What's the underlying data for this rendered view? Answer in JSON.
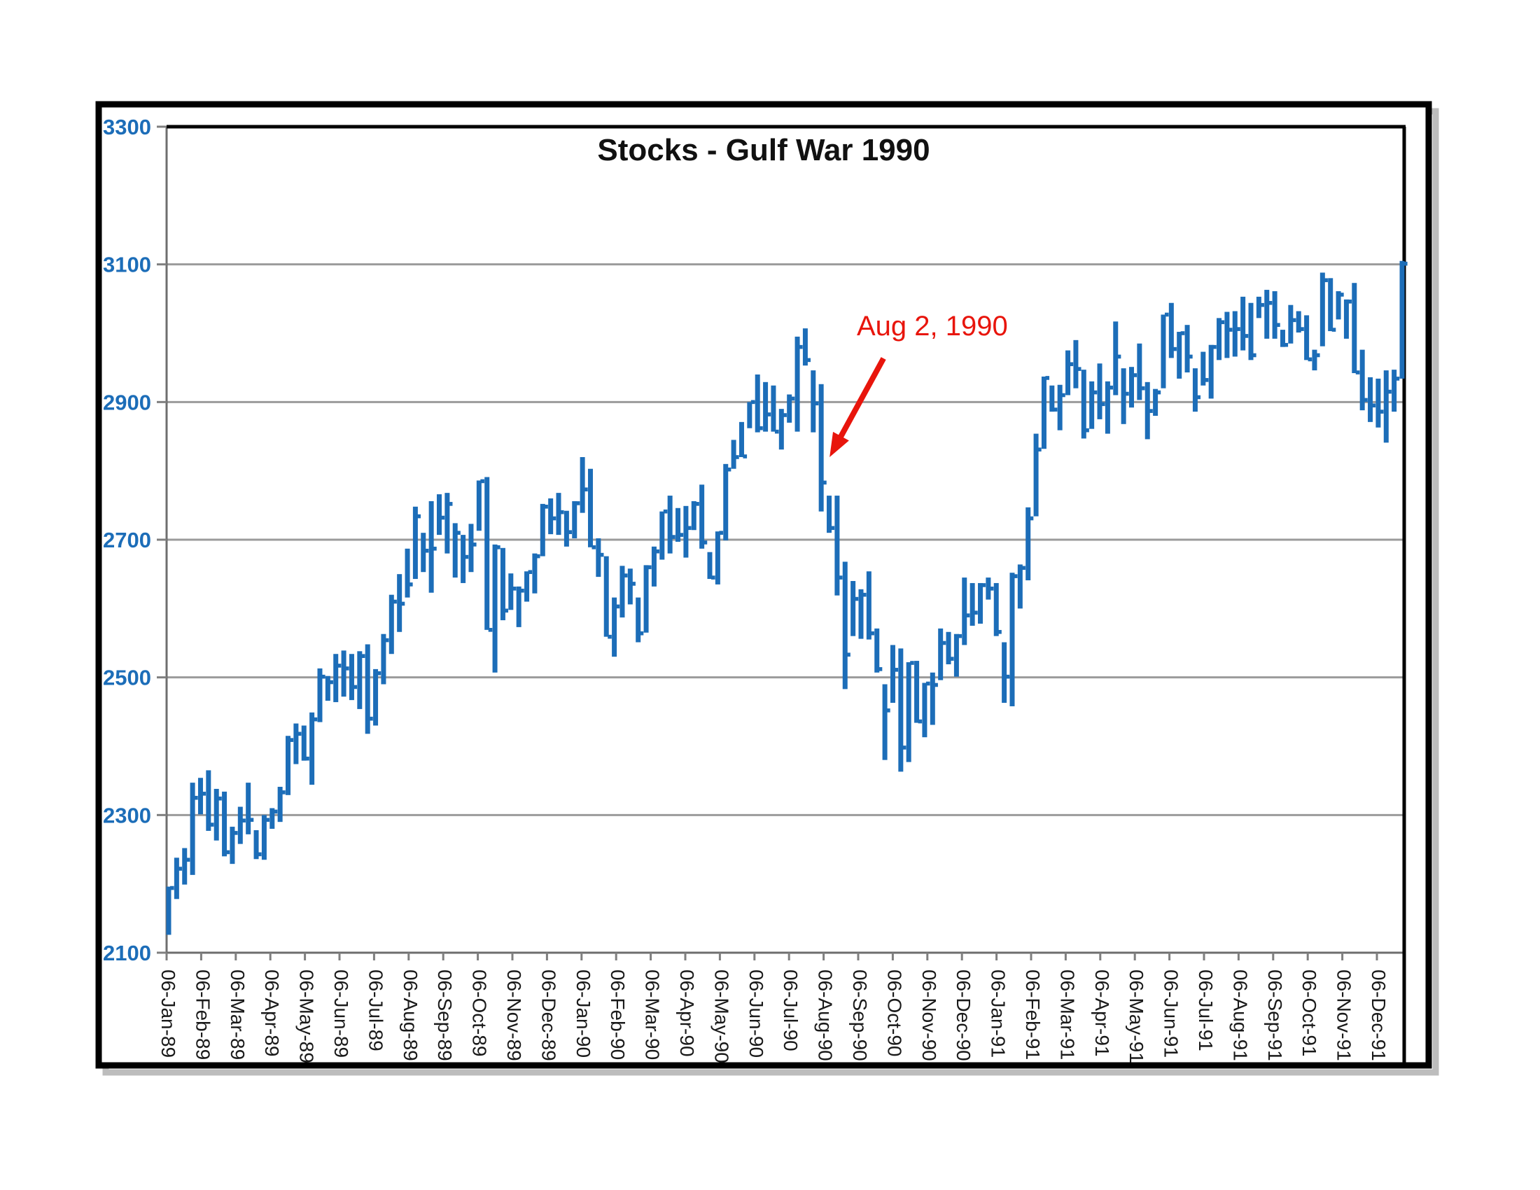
{
  "chart": {
    "title": "Stocks - Gulf War 1990",
    "annotation": {
      "text": "Aug 2, 1990",
      "target_bar_index": 82,
      "target_value": 2820
    },
    "colors": {
      "bar_blue": "#1c6db8",
      "y_label_blue": "#1c6db8",
      "grid_gray": "#9b9b9b",
      "axis_gray": "#6e6e6e",
      "tick_gray": "#7f7f7f",
      "frame_black": "#000000",
      "shadow_gray": "#bdbdbd",
      "x_label_black": "#1a1a1a",
      "annotation_red": "#e8150c",
      "background": "#ffffff"
    }
  },
  "chart_data": {
    "type": "bar",
    "subtype": "high-low-close weekly stock bars",
    "title": "Stocks - Gulf War 1990",
    "annotation": "Aug 2, 1990",
    "xlabel": "",
    "ylabel": "",
    "ylim": [
      2100,
      3300
    ],
    "y_ticks": [
      3300,
      3100,
      2900,
      2700,
      2500,
      2300,
      2100
    ],
    "grid": "horizontal gridlines on",
    "legend": "none",
    "x_tick_labels": [
      "06-Jan-89",
      "06-Feb-89",
      "06-Mar-89",
      "06-Apr-89",
      "06-May-89",
      "06-Jun-89",
      "06-Jul-89",
      "06-Aug-89",
      "06-Sep-89",
      "06-Oct-89",
      "06-Nov-89",
      "06-Dec-89",
      "06-Jan-90",
      "06-Feb-90",
      "06-Mar-90",
      "06-Apr-90",
      "06-May-90",
      "06-Jun-90",
      "06-Jul-90",
      "06-Aug-90",
      "06-Sep-90",
      "06-Oct-90",
      "06-Nov-90",
      "06-Dec-90",
      "06-Jan-91",
      "06-Feb-91",
      "06-Mar-91",
      "06-Apr-91",
      "06-May-91",
      "06-Jun-91",
      "06-Jul-91",
      "06-Aug-91",
      "06-Sep-91",
      "06-Oct-91",
      "06-Nov-91",
      "06-Dec-91"
    ],
    "bars_format": "[high, low, close] per week",
    "bars": [
      [
        2196,
        2126,
        2194
      ],
      [
        2238,
        2178,
        2222
      ],
      [
        2252,
        2199,
        2235
      ],
      [
        2347,
        2213,
        2325
      ],
      [
        2354,
        2301,
        2331
      ],
      [
        2365,
        2277,
        2286
      ],
      [
        2338,
        2263,
        2324
      ],
      [
        2334,
        2240,
        2246
      ],
      [
        2283,
        2229,
        2274
      ],
      [
        2312,
        2258,
        2292
      ],
      [
        2347,
        2272,
        2293
      ],
      [
        2278,
        2236,
        2243
      ],
      [
        2300,
        2235,
        2293
      ],
      [
        2310,
        2280,
        2305
      ],
      [
        2341,
        2290,
        2333
      ],
      [
        2415,
        2329,
        2409
      ],
      [
        2433,
        2374,
        2418
      ],
      [
        2430,
        2379,
        2382
      ],
      [
        2449,
        2344,
        2439
      ],
      [
        2513,
        2435,
        2501
      ],
      [
        2502,
        2466,
        2493
      ],
      [
        2534,
        2464,
        2517
      ],
      [
        2539,
        2472,
        2513
      ],
      [
        2534,
        2467,
        2486
      ],
      [
        2538,
        2454,
        2531
      ],
      [
        2548,
        2418,
        2440
      ],
      [
        2512,
        2430,
        2506
      ],
      [
        2563,
        2490,
        2554
      ],
      [
        2620,
        2534,
        2610
      ],
      [
        2650,
        2566,
        2607
      ],
      [
        2687,
        2616,
        2635
      ],
      [
        2748,
        2643,
        2734
      ],
      [
        2710,
        2653,
        2684
      ],
      [
        2756,
        2623,
        2687
      ],
      [
        2766,
        2707,
        2732
      ],
      [
        2768,
        2680,
        2752
      ],
      [
        2724,
        2645,
        2710
      ],
      [
        2707,
        2637,
        2675
      ],
      [
        2723,
        2653,
        2693
      ],
      [
        2786,
        2713,
        2785
      ],
      [
        2791,
        2569,
        2569
      ],
      [
        2693,
        2507,
        2689
      ],
      [
        2688,
        2583,
        2597
      ],
      [
        2651,
        2598,
        2629
      ],
      [
        2632,
        2573,
        2626
      ],
      [
        2654,
        2610,
        2653
      ],
      [
        2680,
        2622,
        2676
      ],
      [
        2752,
        2676,
        2748
      ],
      [
        2760,
        2708,
        2731
      ],
      [
        2768,
        2707,
        2740
      ],
      [
        2742,
        2690,
        2711
      ],
      [
        2756,
        2702,
        2753
      ],
      [
        2820,
        2739,
        2773
      ],
      [
        2803,
        2689,
        2689
      ],
      [
        2702,
        2646,
        2678
      ],
      [
        2676,
        2559,
        2559
      ],
      [
        2616,
        2530,
        2603
      ],
      [
        2662,
        2587,
        2648
      ],
      [
        2658,
        2606,
        2636
      ],
      [
        2616,
        2551,
        2564
      ],
      [
        2663,
        2565,
        2660
      ],
      [
        2690,
        2632,
        2683
      ],
      [
        2741,
        2671,
        2741
      ],
      [
        2764,
        2680,
        2704
      ],
      [
        2746,
        2697,
        2707
      ],
      [
        2749,
        2674,
        2717
      ],
      [
        2756,
        2714,
        2752
      ],
      [
        2780,
        2687,
        2696
      ],
      [
        2682,
        2643,
        2645
      ],
      [
        2712,
        2635,
        2710
      ],
      [
        2810,
        2699,
        2802
      ],
      [
        2845,
        2803,
        2820
      ],
      [
        2871,
        2820,
        2821
      ],
      [
        2900,
        2862,
        2900
      ],
      [
        2940,
        2856,
        2862
      ],
      [
        2929,
        2857,
        2882
      ],
      [
        2924,
        2857,
        2857
      ],
      [
        2890,
        2831,
        2881
      ],
      [
        2911,
        2870,
        2905
      ],
      [
        2995,
        2857,
        2980
      ],
      [
        3007,
        2953,
        2961
      ],
      [
        2946,
        2856,
        2898
      ],
      [
        2926,
        2741,
        2783
      ],
      [
        2764,
        2710,
        2717
      ],
      [
        2764,
        2619,
        2645
      ],
      [
        2668,
        2483,
        2533
      ],
      [
        2640,
        2560,
        2614
      ],
      [
        2628,
        2556,
        2620
      ],
      [
        2654,
        2555,
        2564
      ],
      [
        2571,
        2507,
        2512
      ],
      [
        2490,
        2380,
        2452
      ],
      [
        2547,
        2463,
        2511
      ],
      [
        2542,
        2363,
        2398
      ],
      [
        2522,
        2377,
        2521
      ],
      [
        2524,
        2434,
        2436
      ],
      [
        2492,
        2413,
        2491
      ],
      [
        2507,
        2431,
        2489
      ],
      [
        2571,
        2496,
        2550
      ],
      [
        2566,
        2519,
        2527
      ],
      [
        2563,
        2501,
        2560
      ],
      [
        2645,
        2547,
        2590
      ],
      [
        2637,
        2575,
        2594
      ],
      [
        2637,
        2578,
        2634
      ],
      [
        2645,
        2613,
        2629
      ],
      [
        2637,
        2560,
        2566
      ],
      [
        2551,
        2463,
        2501
      ],
      [
        2652,
        2458,
        2647
      ],
      [
        2664,
        2600,
        2659
      ],
      [
        2747,
        2641,
        2731
      ],
      [
        2854,
        2734,
        2831
      ],
      [
        2937,
        2832,
        2935
      ],
      [
        2924,
        2886,
        2889
      ],
      [
        2925,
        2859,
        2910
      ],
      [
        2975,
        2910,
        2955
      ],
      [
        2990,
        2920,
        2948
      ],
      [
        2947,
        2847,
        2859
      ],
      [
        2930,
        2861,
        2914
      ],
      [
        2956,
        2875,
        2897
      ],
      [
        2930,
        2854,
        2921
      ],
      [
        3017,
        2910,
        2966
      ],
      [
        2949,
        2868,
        2912
      ],
      [
        2951,
        2892,
        2939
      ],
      [
        2985,
        2903,
        2920
      ],
      [
        2929,
        2846,
        2887
      ],
      [
        2919,
        2880,
        2914
      ],
      [
        3027,
        2920,
        3027
      ],
      [
        3044,
        2964,
        2977
      ],
      [
        3002,
        2934,
        3000
      ],
      [
        3012,
        2943,
        2966
      ],
      [
        2949,
        2886,
        2907
      ],
      [
        2973,
        2924,
        2932
      ],
      [
        2983,
        2905,
        2980
      ],
      [
        3022,
        2961,
        3016
      ],
      [
        3031,
        2964,
        3005
      ],
      [
        3032,
        2966,
        3006
      ],
      [
        3053,
        2975,
        2996
      ],
      [
        3044,
        2961,
        2968
      ],
      [
        3053,
        3022,
        3041
      ],
      [
        3063,
        2992,
        3044
      ],
      [
        3061,
        2992,
        3012
      ],
      [
        3005,
        2980,
        2983
      ],
      [
        3041,
        2985,
        3019
      ],
      [
        3032,
        3001,
        3006
      ],
      [
        3026,
        2961,
        2962
      ],
      [
        2976,
        2946,
        2968
      ],
      [
        3088,
        2981,
        3077
      ],
      [
        3080,
        3003,
        3005
      ],
      [
        3061,
        3020,
        3056
      ],
      [
        3049,
        2992,
        3046
      ],
      [
        3073,
        2942,
        2943
      ],
      [
        2976,
        2888,
        2903
      ],
      [
        2936,
        2871,
        2895
      ],
      [
        2934,
        2863,
        2886
      ],
      [
        2946,
        2841,
        2915
      ],
      [
        2947,
        2886,
        2934
      ],
      [
        3105,
        2934,
        3101
      ]
    ]
  }
}
